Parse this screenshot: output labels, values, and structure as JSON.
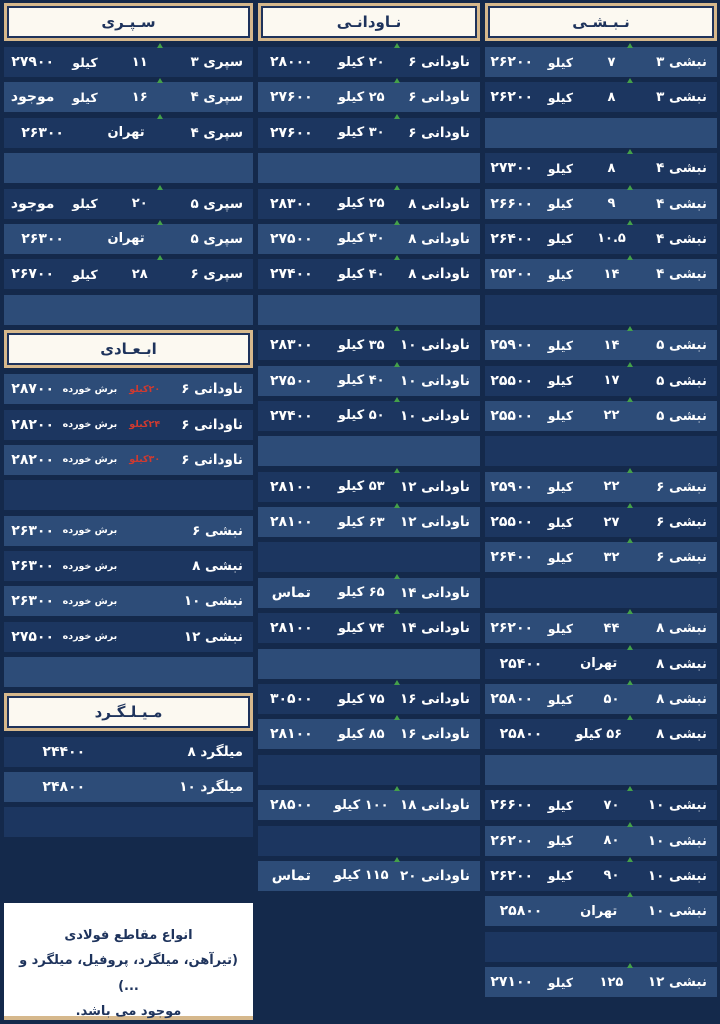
{
  "colors": {
    "background": "#14294b",
    "row_dark": "#1c3660",
    "row_light": "#2d4c78",
    "header_bg": "#fcf9f1",
    "header_border_tan": "#d6b88c",
    "navy_text": "#1e335c",
    "red_text": "#cf3a30",
    "green_arrow": "#44a04a"
  },
  "sections": {
    "nabshi": {
      "header": "نـبـشـی",
      "rows": [
        {
          "name": "نبشی ۳",
          "size": "۷",
          "unit": "کیلو",
          "price": "۲۶۲۰۰"
        },
        {
          "name": "نبشی ۳",
          "size": "۸",
          "unit": "کیلو",
          "price": "۲۶۲۰۰"
        },
        {
          "empty": true
        },
        {
          "name": "نبشی ۴",
          "size": "۸",
          "unit": "کیلو",
          "price": "۲۷۳۰۰"
        },
        {
          "name": "نبشی ۴",
          "size": "۹",
          "unit": "کیلو",
          "price": "۲۶۶۰۰"
        },
        {
          "name": "نبشی ۴",
          "size": "۱۰.۵",
          "unit": "کیلو",
          "price": "۲۶۴۰۰"
        },
        {
          "name": "نبشی ۴",
          "size": "۱۴",
          "unit": "کیلو",
          "price": "۲۵۲۰۰"
        },
        {
          "empty": true
        },
        {
          "name": "نبشی ۵",
          "size": "۱۴",
          "unit": "کیلو",
          "price": "۲۵۹۰۰"
        },
        {
          "name": "نبشی ۵",
          "size": "۱۷",
          "unit": "کیلو",
          "price": "۲۵۵۰۰"
        },
        {
          "name": "نبشی ۵",
          "size": "۲۲",
          "unit": "کیلو",
          "price": "۲۵۵۰۰"
        },
        {
          "empty": true
        },
        {
          "name": "نبشی ۶",
          "size": "۲۲",
          "unit": "کیلو",
          "price": "۲۵۹۰۰"
        },
        {
          "name": "نبشی ۶",
          "size": "۲۷",
          "unit": "کیلو",
          "price": "۲۵۵۰۰"
        },
        {
          "name": "نبشی ۶",
          "size": "۳۲",
          "unit": "کیلو",
          "price": "۲۶۴۰۰"
        },
        {
          "empty": true
        },
        {
          "name": "نبشی ۸",
          "size": "۴۴",
          "unit": "کیلو",
          "price": "۲۶۲۰۰"
        },
        {
          "name": "نبشی ۸",
          "mid": "تهران",
          "price": "۲۵۴۰۰"
        },
        {
          "name": "نبشی ۸",
          "size": "۵۰",
          "unit": "کیلو",
          "price": "۲۵۸۰۰"
        },
        {
          "name": "نبشی ۸",
          "mid": "۵۶ کیلو",
          "price": "۲۵۸۰۰"
        },
        {
          "empty": true
        },
        {
          "name": "نبشی ۱۰",
          "size": "۷۰",
          "unit": "کیلو",
          "price": "۲۶۶۰۰"
        },
        {
          "name": "نبشی ۱۰",
          "size": "۸۰",
          "unit": "کیلو",
          "price": "۲۶۲۰۰"
        },
        {
          "name": "نبشی ۱۰",
          "size": "۹۰",
          "unit": "کیلو",
          "price": "۲۶۲۰۰"
        },
        {
          "name": "نبشی ۱۰",
          "mid": "تهران",
          "price": "۲۵۸۰۰"
        },
        {
          "empty": true
        },
        {
          "name": "نبشی ۱۲",
          "size": "۱۲۵",
          "unit": "کیلو",
          "price": "۲۷۱۰۰"
        }
      ]
    },
    "navodani": {
      "header": "نـاودانـی",
      "rows": [
        {
          "name": "ناودانی ۶",
          "spec": "۲۰ کیلو",
          "price": "۲۸۰۰۰"
        },
        {
          "name": "ناودانی ۶",
          "spec": "۲۵ کیلو",
          "price": "۲۷۶۰۰"
        },
        {
          "name": "ناودانی ۶",
          "spec": "۳۰ کیلو",
          "price": "۲۷۶۰۰"
        },
        {
          "empty": true
        },
        {
          "name": "ناودانی ۸",
          "spec": "۲۵ کیلو",
          "price": "۲۸۳۰۰"
        },
        {
          "name": "ناودانی ۸",
          "spec": "۳۰ کیلو",
          "price": "۲۷۵۰۰"
        },
        {
          "name": "ناودانی ۸",
          "spec": "۴۰ کیلو",
          "price": "۲۷۴۰۰"
        },
        {
          "empty": true
        },
        {
          "name": "ناودانی ۱۰",
          "spec": "۳۵ کیلو",
          "price": "۲۸۳۰۰"
        },
        {
          "name": "ناودانی ۱۰",
          "spec": "۴۰ کیلو",
          "price": "۲۷۵۰۰"
        },
        {
          "name": "ناودانی ۱۰",
          "spec": "۵۰ کیلو",
          "price": "۲۷۴۰۰"
        },
        {
          "empty": true
        },
        {
          "name": "ناودانی ۱۲",
          "spec": "۵۳ کیلو",
          "price": "۲۸۱۰۰"
        },
        {
          "name": "ناودانی ۱۲",
          "spec": "۶۳ کیلو",
          "price": "۲۸۱۰۰"
        },
        {
          "empty": true
        },
        {
          "name": "ناودانی ۱۴",
          "spec": "۶۵ کیلو",
          "price": "تماس"
        },
        {
          "name": "ناودانی ۱۴",
          "spec": "۷۴ کیلو",
          "price": "۲۸۱۰۰"
        },
        {
          "empty": true
        },
        {
          "name": "ناودانی ۱۶",
          "spec": "۷۵ کیلو",
          "price": "۳۰۵۰۰"
        },
        {
          "name": "ناودانی ۱۶",
          "spec": "۸۵ کیلو",
          "price": "۲۸۱۰۰"
        },
        {
          "empty": true
        },
        {
          "name": "ناودانی ۱۸",
          "spec": "۱۰۰ کیلو",
          "price": "۲۸۵۰۰"
        },
        {
          "empty": true
        },
        {
          "name": "ناودانی ۲۰",
          "spec": "۱۱۵ کیلو",
          "price": "تماس"
        }
      ]
    },
    "separi": {
      "header": "سـپـری",
      "rows": [
        {
          "name": "سپری ۳",
          "size": "۱۱",
          "unit": "کیلو",
          "price": "۲۷۹۰۰"
        },
        {
          "name": "سپری ۴",
          "size": "۱۶",
          "unit": "کیلو",
          "price": "موجود"
        },
        {
          "name": "سپری ۴",
          "mid": "تهران",
          "price": "۲۶۳۰۰"
        },
        {
          "empty": true
        },
        {
          "name": "سپری ۵",
          "size": "۲۰",
          "unit": "کیلو",
          "price": "موجود"
        },
        {
          "name": "سپری ۵",
          "mid": "تهران",
          "price": "۲۶۳۰۰"
        },
        {
          "name": "سپری ۶",
          "size": "۲۸",
          "unit": "کیلو",
          "price": "۲۶۷۰۰"
        },
        {
          "empty": true
        }
      ]
    },
    "abadi": {
      "header": "ابـعـادی",
      "rows": [
        {
          "name": "ناودانی ۶",
          "kilo": "۲۰کیلو",
          "spec": "برش خورده",
          "price": "۲۸۷۰۰"
        },
        {
          "name": "ناودانی ۶",
          "kilo": "۲۴کیلو",
          "spec": "برش خورده",
          "price": "۲۸۲۰۰"
        },
        {
          "name": "ناودانی ۶",
          "kilo": "۳۰کیلو",
          "spec": "برش خورده",
          "price": "۲۸۲۰۰"
        },
        {
          "empty": true
        },
        {
          "name": "نبشی ۶",
          "kilo": "",
          "spec": "برش خورده",
          "price": "۲۶۳۰۰"
        },
        {
          "name": "نبشی ۸",
          "kilo": "",
          "spec": "برش خورده",
          "price": "۲۶۳۰۰"
        },
        {
          "name": "نبشی ۱۰",
          "kilo": "",
          "spec": "برش خورده",
          "price": "۲۶۳۰۰"
        },
        {
          "name": "نبشی ۱۲",
          "kilo": "",
          "spec": "برش خورده",
          "price": "۲۷۵۰۰"
        },
        {
          "empty": true
        }
      ]
    },
    "milgard": {
      "header": "مـیـلـگـرد",
      "rows": [
        {
          "name": "میلگرد ۸",
          "price": "۲۴۴۰۰"
        },
        {
          "name": "میلگرد ۱۰",
          "price": "۲۴۸۰۰"
        },
        {
          "empty": true
        }
      ]
    }
  },
  "info_box": {
    "line1": "انواع مقاطع فولادی",
    "line2": "(تیرآهن، میلگرد، پروفیل، میلگرد و ...)",
    "line3": "موجود می باشد."
  }
}
